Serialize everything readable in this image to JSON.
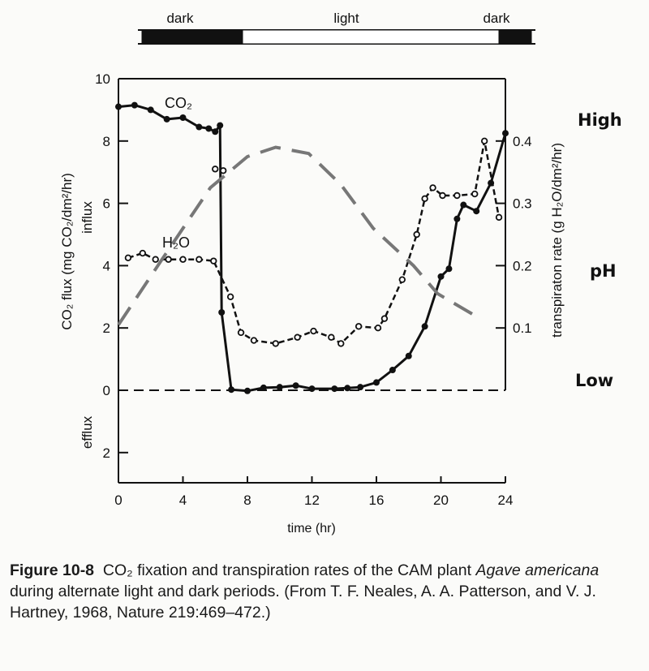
{
  "chart_data": {
    "type": "line",
    "title": "",
    "xlabel": "time (hr)",
    "ylabel": "CO₂ flux (mg CO₂/dm²/hr)",
    "ylabel_influx": "influx",
    "ylabel_efflux": "efflux",
    "y2label": "transpiraton rate (g H₂O/dm²/hr)",
    "xlim": [
      0,
      24
    ],
    "ylim": [
      -3,
      10
    ],
    "y2lim": [
      -0.15,
      0.5
    ],
    "xticks": [
      0,
      4,
      8,
      12,
      16,
      20,
      24
    ],
    "yticks": [
      {
        "v": 10,
        "label": "10"
      },
      {
        "v": 8,
        "label": "8"
      },
      {
        "v": 6,
        "label": "6"
      },
      {
        "v": 4,
        "label": "4"
      },
      {
        "v": 2,
        "label": "2"
      },
      {
        "v": 0,
        "label": "0"
      },
      {
        "v": -2,
        "label": "2"
      }
    ],
    "y2ticks": [
      {
        "v": 0.4,
        "label": "0.4"
      },
      {
        "v": 0.3,
        "label": "0.3"
      },
      {
        "v": 0.2,
        "label": "0.2"
      },
      {
        "v": 0.1,
        "label": "0.1"
      }
    ],
    "grid": false,
    "photoperiod": {
      "labels": [
        "dark",
        "light",
        "dark"
      ],
      "segments": [
        {
          "state": "dark",
          "from": 0,
          "to": 6.2
        },
        {
          "state": "light",
          "from": 6.2,
          "to": 22
        },
        {
          "state": "dark",
          "from": 22,
          "to": 24
        }
      ]
    },
    "series": [
      {
        "name": "CO₂",
        "axis": "left",
        "style": "solid-filled",
        "x": [
          0,
          1,
          2,
          3,
          4,
          5,
          5.6,
          6.0,
          6.3,
          6.4,
          7,
          8,
          9,
          10,
          11,
          12,
          13.4,
          14.2,
          15,
          16,
          17,
          18,
          19,
          20,
          20.5,
          21,
          21.4,
          22.2,
          23.1,
          24
        ],
        "y": [
          9.1,
          9.15,
          9.0,
          8.7,
          8.75,
          8.45,
          8.4,
          8.3,
          8.5,
          2.5,
          0.02,
          -0.02,
          0.08,
          0.1,
          0.15,
          0.05,
          0.05,
          0.07,
          0.1,
          0.25,
          0.65,
          1.1,
          2.05,
          3.65,
          3.9,
          5.5,
          5.95,
          5.75,
          6.65,
          8.25
        ]
      },
      {
        "name": "H₂O",
        "axis": "right",
        "style": "dashed-open",
        "x": [
          0.6,
          1.5,
          2.3,
          3.1,
          4,
          5,
          5.9,
          6.95,
          7.6,
          8.4,
          9.75,
          11.1,
          12.1,
          13.2,
          13.8,
          14.9,
          16.1,
          16.5,
          17.6,
          18.5,
          19.0,
          19.5,
          20.1,
          21.0,
          22.1,
          22.7,
          23.6
        ],
        "y": [
          0.2125,
          0.22,
          0.21,
          0.21,
          0.21,
          0.21,
          0.2075,
          0.15,
          0.0925,
          0.08,
          0.075,
          0.085,
          0.095,
          0.085,
          0.075,
          0.1025,
          0.1,
          0.115,
          0.1775,
          0.25,
          0.3075,
          0.325,
          0.3125,
          0.3125,
          0.315,
          0.4,
          0.2775
        ]
      },
      {
        "name": "H₂O (unconnected points)",
        "axis": "right",
        "style": "open",
        "x": [
          6.0,
          6.5
        ],
        "y": [
          0.355,
          0.3525
        ]
      },
      {
        "name": "pH",
        "axis": "relative",
        "style": "gray-long-dash",
        "x": [
          0,
          2.7,
          5.7,
          8,
          9.75,
          11.8,
          13.8,
          15.8,
          18.3,
          19.8,
          22.1
        ],
        "y": [
          2.1,
          4.2,
          6.5,
          7.5,
          7.8,
          7.6,
          6.6,
          5.2,
          4.0,
          3.1,
          2.4
        ]
      }
    ],
    "annotations": {
      "co2_label": "CO₂",
      "h2o_label": "H₂O"
    },
    "ph_scale": {
      "high": "High",
      "mid": "pH",
      "low": "Low"
    },
    "colors": {
      "ink": "#111111",
      "ph_curve": "#777777"
    }
  },
  "caption": {
    "label": "Figure 10-8",
    "part1": "CO₂ fixation and transpiration rates of the CAM plant",
    "species": "Agave americana",
    "part2": "during alternate light and dark periods. (From T. F. Neales, A. A. Patterson, and V. J. Hartney, 1968, Nature 219:469–472.)"
  }
}
